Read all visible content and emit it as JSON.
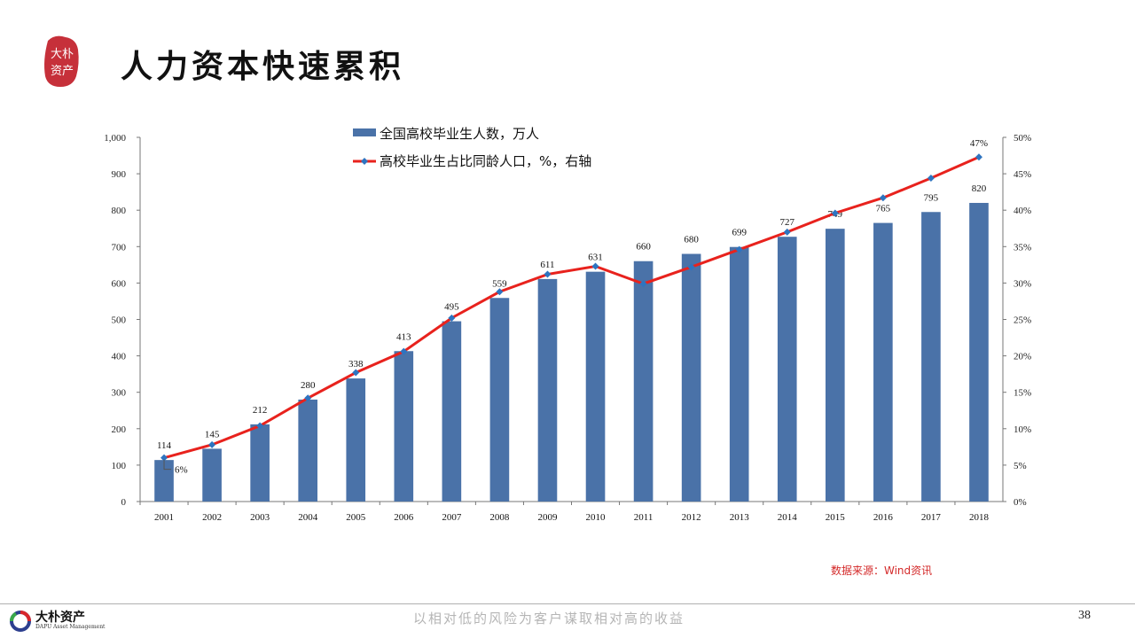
{
  "header": {
    "title": "人力资本快速累积",
    "seal_text": "大朴资产"
  },
  "chart_data": {
    "type": "bar",
    "categories": [
      "2001",
      "2002",
      "2003",
      "2004",
      "2005",
      "2006",
      "2007",
      "2008",
      "2009",
      "2010",
      "2011",
      "2012",
      "2013",
      "2014",
      "2015",
      "2016",
      "2017",
      "2018"
    ],
    "series": [
      {
        "name": "全国高校毕业生人数，万人",
        "type": "bar",
        "axis": "left",
        "color": "#4a72a8",
        "values": [
          114,
          145,
          212,
          280,
          338,
          413,
          495,
          559,
          611,
          631,
          660,
          680,
          699,
          727,
          749,
          765,
          795,
          820
        ]
      },
      {
        "name": "高校毕业生占比同龄人口，%，右轴",
        "type": "line",
        "axis": "right",
        "color": "#e8221d",
        "marker_color": "#2e74c0",
        "values": [
          6.0,
          7.8,
          10.4,
          14.2,
          17.7,
          20.6,
          25.2,
          28.8,
          31.2,
          32.3,
          29.9,
          32.2,
          34.6,
          37.0,
          39.6,
          41.7,
          44.4,
          47.3
        ]
      }
    ],
    "value_labels": [
      "114",
      "145",
      "212",
      "280",
      "338",
      "413",
      "495",
      "559",
      "611",
      "631",
      "660",
      "680",
      "699",
      "727",
      "749",
      "765",
      "795",
      "820"
    ],
    "line_annotations": {
      "first": "6%",
      "last": "47%"
    },
    "y_left": {
      "min": 0,
      "max": 1000,
      "ticks": [
        "0",
        "100",
        "200",
        "300",
        "400",
        "500",
        "600",
        "700",
        "800",
        "900",
        "1,000"
      ]
    },
    "y_right": {
      "min": 0,
      "max": 50,
      "ticks": [
        "0%",
        "5%",
        "10%",
        "15%",
        "20%",
        "25%",
        "30%",
        "35%",
        "40%",
        "45%",
        "50%"
      ]
    },
    "grid": false,
    "legend_position": "top-left"
  },
  "source": "数据来源：Wind资讯",
  "footer": {
    "company_name": "大朴资产",
    "company_en": "DAPU Asset Management",
    "slogan": "以相对低的风险为客户谋取相对高的收益",
    "page_number": "38"
  }
}
